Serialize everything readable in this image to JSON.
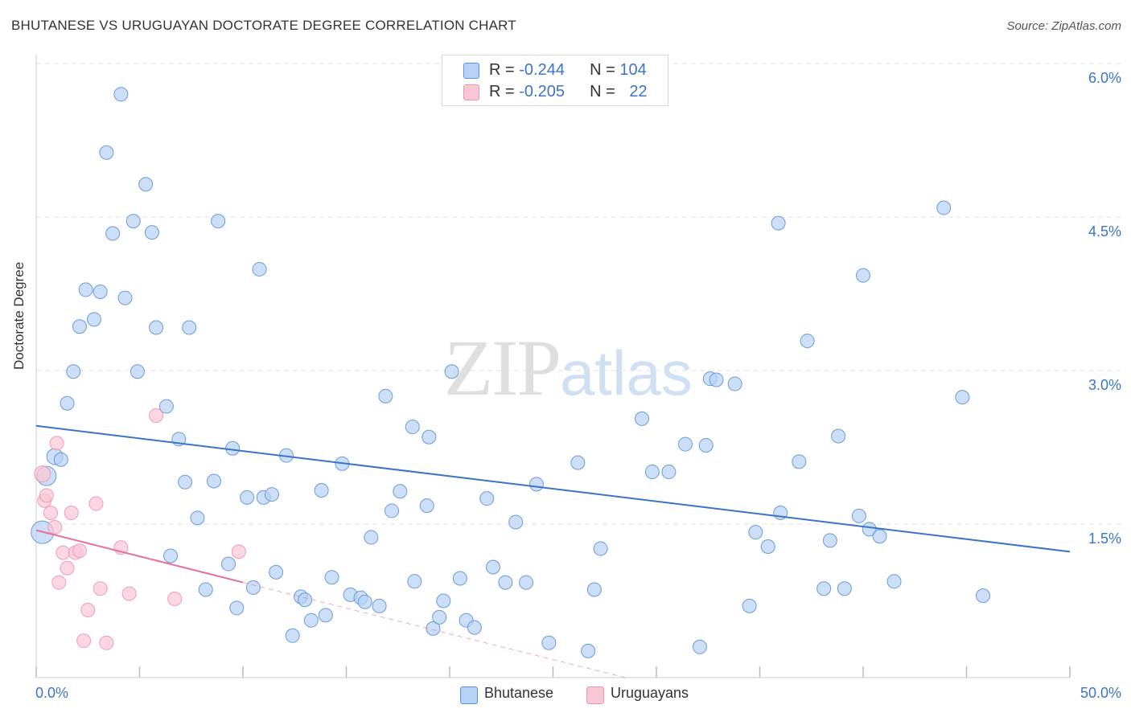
{
  "title": "BHUTANESE VS URUGUAYAN DOCTORATE DEGREE CORRELATION CHART",
  "source": "Source: ZipAtlas.com",
  "watermark": {
    "zip": "ZIP",
    "atlas": "atlas"
  },
  "stats": [
    {
      "r_label": "R = ",
      "r": "-0.244",
      "n_label": "N = ",
      "n": "104",
      "color": "#b6d1f3"
    },
    {
      "r_label": "R = ",
      "r": "-0.205",
      "n_label": "N = ",
      "n": "22",
      "color": "#f9c6d4"
    }
  ],
  "legend": [
    {
      "label": "Bhutanese",
      "color": "#b6d1f3"
    },
    {
      "label": "Uruguayans",
      "color": "#f9c6d4"
    }
  ],
  "chart_data": {
    "type": "scatter",
    "title": "BHUTANESE VS URUGUAYAN DOCTORATE DEGREE CORRELATION CHART",
    "xlabel": "",
    "ylabel": "Doctorate Degree",
    "xlim": [
      0,
      50
    ],
    "ylim": [
      0,
      6.0
    ],
    "x_tick_labels": [
      {
        "v": 0,
        "label": "0.0%"
      },
      {
        "v": 50,
        "label": "50.0%"
      }
    ],
    "y_tick_labels": [
      {
        "v": 1.5,
        "label": "1.5%"
      },
      {
        "v": 3.0,
        "label": "3.0%"
      },
      {
        "v": 4.5,
        "label": "4.5%"
      },
      {
        "v": 6.0,
        "label": "6.0%"
      }
    ],
    "series": [
      {
        "name": "Bhutanese",
        "color": "#5b93d6",
        "fill": "#b6d1f3",
        "trend": {
          "x0": 0,
          "y0": 2.46,
          "x1": 50,
          "y1": 1.23,
          "color": "#3a74c9",
          "dash_to": null
        },
        "points": [
          [
            0.3,
            1.42
          ],
          [
            0.5,
            1.97
          ],
          [
            0.9,
            2.16
          ],
          [
            1.2,
            2.13
          ],
          [
            1.5,
            2.68
          ],
          [
            1.8,
            2.99
          ],
          [
            2.1,
            3.43
          ],
          [
            2.4,
            3.79
          ],
          [
            2.8,
            3.5
          ],
          [
            3.1,
            3.77
          ],
          [
            3.4,
            5.13
          ],
          [
            3.7,
            4.34
          ],
          [
            4.1,
            5.7
          ],
          [
            4.3,
            3.71
          ],
          [
            4.7,
            4.46
          ],
          [
            4.9,
            2.99
          ],
          [
            5.3,
            4.82
          ],
          [
            5.6,
            4.35
          ],
          [
            5.8,
            3.42
          ],
          [
            6.3,
            2.65
          ],
          [
            6.5,
            1.19
          ],
          [
            6.9,
            2.33
          ],
          [
            7.2,
            1.91
          ],
          [
            7.4,
            3.42
          ],
          [
            7.8,
            1.56
          ],
          [
            8.2,
            0.86
          ],
          [
            8.6,
            1.92
          ],
          [
            8.8,
            4.46
          ],
          [
            9.3,
            1.11
          ],
          [
            9.5,
            2.24
          ],
          [
            9.7,
            0.68
          ],
          [
            10.2,
            1.76
          ],
          [
            10.5,
            0.88
          ],
          [
            10.8,
            3.99
          ],
          [
            11.0,
            1.76
          ],
          [
            11.4,
            1.79
          ],
          [
            11.6,
            1.03
          ],
          [
            12.1,
            2.17
          ],
          [
            12.4,
            0.41
          ],
          [
            12.8,
            0.79
          ],
          [
            13.0,
            0.76
          ],
          [
            13.3,
            0.56
          ],
          [
            13.8,
            1.83
          ],
          [
            14.0,
            0.61
          ],
          [
            14.3,
            0.98
          ],
          [
            14.8,
            2.09
          ],
          [
            15.2,
            0.81
          ],
          [
            15.7,
            0.78
          ],
          [
            15.9,
            0.74
          ],
          [
            16.2,
            1.37
          ],
          [
            16.6,
            0.7
          ],
          [
            16.9,
            2.75
          ],
          [
            17.2,
            1.63
          ],
          [
            17.6,
            1.82
          ],
          [
            18.2,
            2.45
          ],
          [
            18.3,
            0.94
          ],
          [
            18.9,
            1.68
          ],
          [
            19.0,
            2.35
          ],
          [
            19.2,
            0.48
          ],
          [
            19.5,
            0.59
          ],
          [
            19.7,
            0.75
          ],
          [
            20.1,
            2.99
          ],
          [
            20.5,
            0.97
          ],
          [
            20.8,
            0.56
          ],
          [
            21.2,
            0.49
          ],
          [
            21.8,
            1.75
          ],
          [
            22.1,
            1.08
          ],
          [
            22.7,
            0.93
          ],
          [
            23.2,
            1.52
          ],
          [
            23.7,
            0.93
          ],
          [
            24.2,
            1.89
          ],
          [
            24.8,
            0.34
          ],
          [
            26.2,
            2.1
          ],
          [
            26.7,
            0.26
          ],
          [
            27.0,
            0.86
          ],
          [
            27.3,
            1.26
          ],
          [
            29.3,
            2.53
          ],
          [
            29.8,
            2.01
          ],
          [
            30.6,
            2.01
          ],
          [
            31.4,
            2.28
          ],
          [
            32.1,
            0.3
          ],
          [
            32.4,
            2.27
          ],
          [
            32.6,
            2.92
          ],
          [
            32.9,
            2.91
          ],
          [
            33.8,
            2.87
          ],
          [
            34.5,
            0.7
          ],
          [
            34.8,
            1.42
          ],
          [
            35.4,
            1.28
          ],
          [
            35.9,
            4.44
          ],
          [
            36.0,
            1.61
          ],
          [
            36.9,
            2.11
          ],
          [
            37.3,
            3.29
          ],
          [
            38.1,
            0.87
          ],
          [
            38.4,
            1.34
          ],
          [
            38.8,
            2.36
          ],
          [
            39.1,
            0.87
          ],
          [
            39.8,
            1.58
          ],
          [
            40.0,
            3.93
          ],
          [
            40.3,
            1.45
          ],
          [
            40.8,
            1.38
          ],
          [
            41.5,
            0.94
          ],
          [
            43.9,
            4.59
          ],
          [
            44.8,
            2.74
          ],
          [
            45.8,
            0.8
          ]
        ]
      },
      {
        "name": "Uruguayans",
        "color": "#ee94b1",
        "fill": "#f9c6d4",
        "trend": {
          "x0": 0,
          "y0": 1.44,
          "x1": 10,
          "y1": 0.93,
          "color": "#e4709a",
          "dash_to": {
            "x": 28.5,
            "y": 0.0
          }
        },
        "points": [
          [
            0.3,
            1.99
          ],
          [
            0.4,
            1.73
          ],
          [
            0.5,
            1.78
          ],
          [
            0.7,
            1.61
          ],
          [
            0.9,
            1.47
          ],
          [
            1.0,
            2.29
          ],
          [
            1.1,
            0.93
          ],
          [
            1.3,
            1.22
          ],
          [
            1.5,
            1.07
          ],
          [
            1.7,
            1.61
          ],
          [
            1.9,
            1.22
          ],
          [
            2.1,
            1.24
          ],
          [
            2.3,
            0.36
          ],
          [
            2.5,
            0.66
          ],
          [
            2.9,
            1.7
          ],
          [
            3.1,
            0.87
          ],
          [
            3.4,
            0.34
          ],
          [
            4.1,
            1.27
          ],
          [
            4.5,
            0.82
          ],
          [
            5.8,
            2.56
          ],
          [
            6.7,
            0.77
          ],
          [
            9.8,
            1.23
          ]
        ]
      }
    ]
  }
}
